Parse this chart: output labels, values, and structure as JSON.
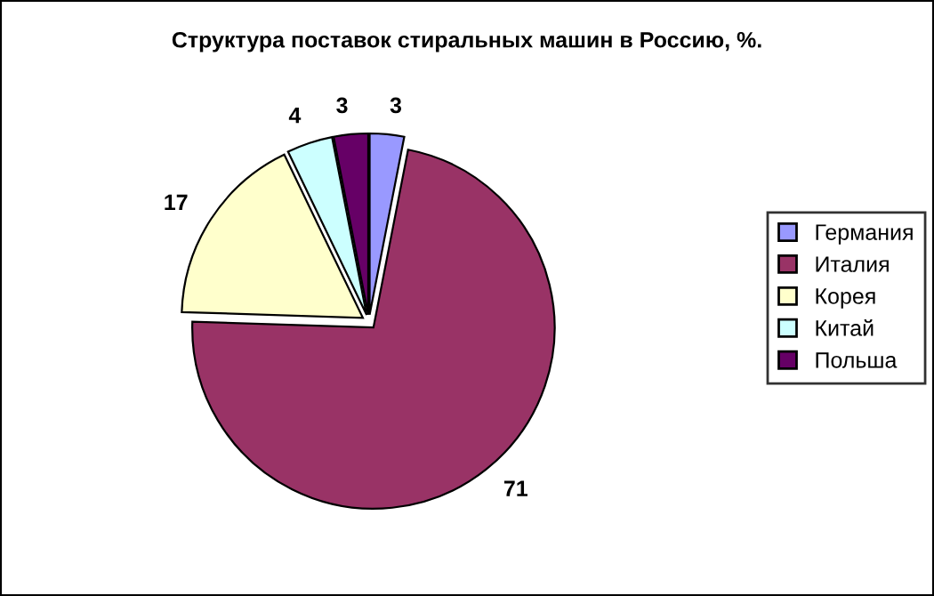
{
  "chart_data": {
    "type": "pie",
    "title": "Структура поставок стиральных машин в Россию, %.",
    "categories": [
      "Германия",
      "Италия",
      "Корея",
      "Китай",
      "Польша"
    ],
    "values": [
      3,
      71,
      17,
      4,
      3
    ],
    "colors": [
      "#9999ff",
      "#993366",
      "#ffffcc",
      "#ccffff",
      "#660066"
    ],
    "legend": "right",
    "data_labels": true
  }
}
